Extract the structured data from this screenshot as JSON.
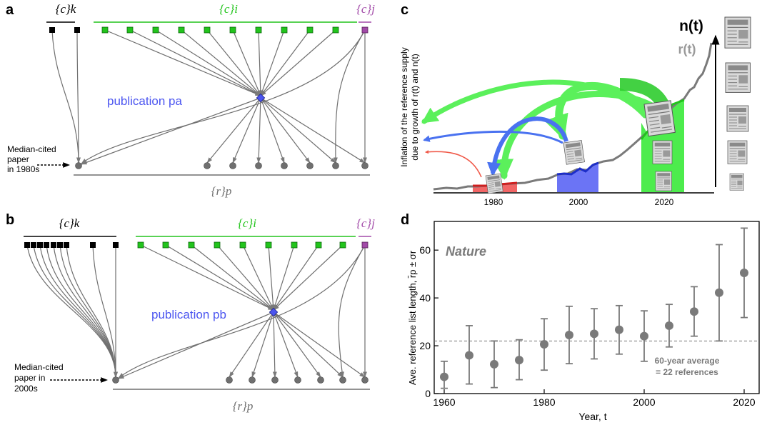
{
  "panels": {
    "a": {
      "label": "a",
      "set_k": "{c}k",
      "set_i": "{c}i",
      "set_j": "{c}j",
      "publication": "publication pa",
      "set_r": "{r}p",
      "median_lines": [
        "Median-cited",
        "paper",
        "in 1980s"
      ]
    },
    "b": {
      "label": "b",
      "set_k": "{c}k",
      "set_i": "{c}i",
      "set_j": "{c}j",
      "publication": "publication pb",
      "set_r": "{r}p",
      "median_lines": [
        "Median-cited",
        "paper in",
        "2000s"
      ]
    },
    "c": {
      "label": "c",
      "ylabel_lines": [
        "Inflation of the reference supply",
        "due to growth of r(t) and n(t)"
      ],
      "n_label": "n(t)",
      "r_label": "r(t)",
      "x_ticks": [
        "1980",
        "2000",
        "2020"
      ]
    },
    "d": {
      "label": "d",
      "journal": "Nature",
      "ylabel": "Ave. reference list length, r̄p ± σr",
      "xlabel": "Year, t",
      "annotation_lines": [
        "60-year average",
        "= 22 references"
      ]
    }
  },
  "colors": {
    "cited_k": "#000000",
    "cited_i": "#22c41c",
    "cited_j": "#a24aa8",
    "publication": "#4b55f0",
    "reference": "#6f6f6f",
    "arrow_green": "#53ef53",
    "arrow_blue": "#4a72f0",
    "arrow_red": "#f05a4a",
    "series_gray": "#7a7a7a"
  },
  "chart_data": {
    "type": "scatter",
    "title": "Nature",
    "xlabel": "Year, t",
    "ylabel": "Ave. reference list length, r̄p ± σr",
    "x": [
      1960,
      1965,
      1970,
      1975,
      1980,
      1985,
      1990,
      1995,
      2000,
      2005,
      2010,
      2015,
      2020
    ],
    "y": [
      7,
      16,
      12.3,
      14,
      20.6,
      24.5,
      25,
      26.7,
      24,
      28.4,
      34.3,
      42.2,
      50.5
    ],
    "err_low": [
      2.2,
      4,
      2.5,
      5.8,
      9.8,
      12.5,
      14.5,
      16.5,
      13.5,
      19.5,
      24,
      22,
      31.8
    ],
    "err_high": [
      13.5,
      28.4,
      22,
      22.5,
      31.3,
      36.5,
      35.5,
      36.8,
      34.6,
      37.3,
      44.7,
      62.3,
      69.2
    ],
    "xlim": [
      1958,
      2023
    ],
    "ylim": [
      0,
      72
    ],
    "x_ticks": [
      1960,
      1980,
      2000,
      2020
    ],
    "y_ticks": [
      0,
      20,
      40,
      60
    ],
    "reference_line": 22,
    "grid": false
  }
}
